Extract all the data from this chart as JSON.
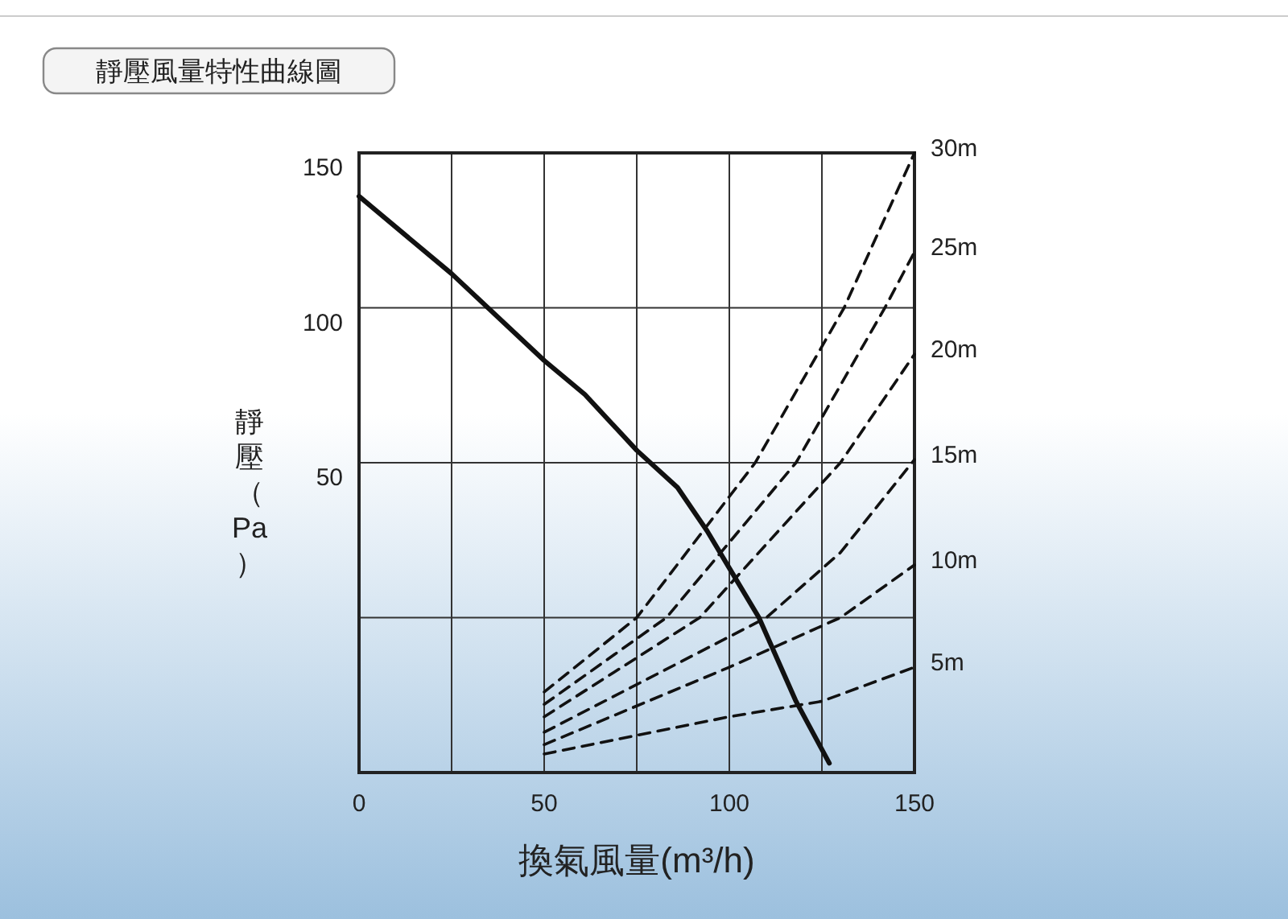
{
  "chart_data": {
    "type": "line",
    "title": "靜壓風量特性曲線圖",
    "xlabel": "換氣風量(m³/h)",
    "ylabel": "靜壓（Pa）",
    "xlim": [
      0,
      150
    ],
    "ylim": [
      -50,
      150
    ],
    "xticks": [
      0,
      {
        "value": 25,
        "label": null
      },
      50,
      {
        "value": 75,
        "label": null
      },
      100,
      {
        "value": 125,
        "label": null
      },
      150
    ],
    "yticks": [
      {
        "value": 0,
        "label": null
      },
      50,
      100,
      150
    ],
    "grid": true,
    "legend": false,
    "marker": "none",
    "series": [
      {
        "color": "#111111",
        "line_style": "solid",
        "x": [
          0,
          25,
          50,
          61,
          75,
          86,
          94,
          101,
          108,
          118,
          127
        ],
        "values": [
          136,
          111,
          83,
          72,
          54,
          42,
          28,
          14,
          0,
          -27,
          -47
        ]
      },
      {
        "name": "30m",
        "color": "#111111",
        "line_style": "dashed",
        "x": [
          50,
          75,
          107,
          131,
          150
        ],
        "values": [
          -24,
          0,
          50,
          100,
          150
        ]
      },
      {
        "name": "25m",
        "color": "#111111",
        "line_style": "dashed",
        "x": [
          50,
          83,
          118,
          142,
          150
        ],
        "values": [
          -28,
          0,
          50,
          100,
          118
        ]
      },
      {
        "name": "20m",
        "color": "#111111",
        "line_style": "dashed",
        "x": [
          50,
          92,
          130,
          150
        ],
        "values": [
          -32,
          0,
          50,
          85
        ]
      },
      {
        "name": "15m",
        "color": "#111111",
        "line_style": "dashed",
        "x": [
          50,
          110,
          130,
          150
        ],
        "values": [
          -37,
          0,
          21,
          51
        ]
      },
      {
        "name": "10m",
        "color": "#111111",
        "line_style": "dashed",
        "x": [
          50,
          100,
          130,
          150
        ],
        "values": [
          -41,
          -16,
          0,
          17
        ]
      },
      {
        "name": "5m",
        "color": "#111111",
        "line_style": "dashed",
        "x": [
          50,
          100,
          125,
          150
        ],
        "values": [
          -44,
          -32,
          -27,
          -16
        ]
      }
    ]
  }
}
